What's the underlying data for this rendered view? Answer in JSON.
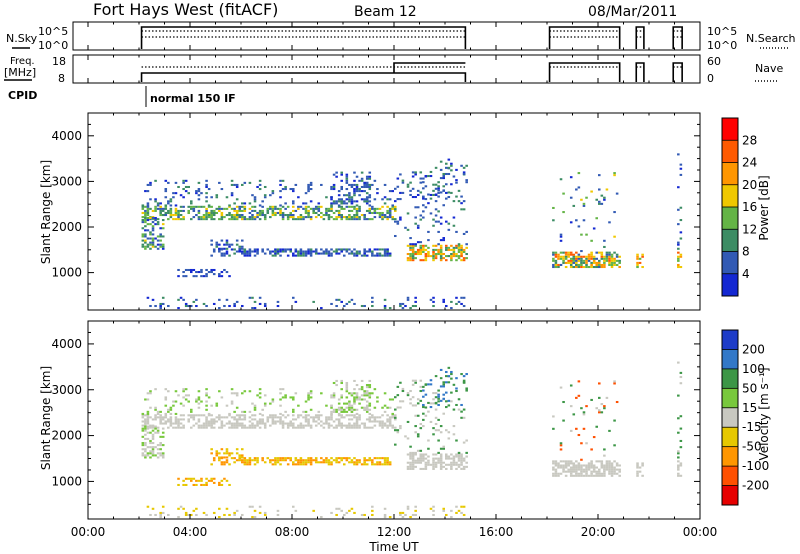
{
  "header": {
    "title": "Fort Hays West (fitACF)",
    "beam": "Beam 12",
    "date": "08/Mar/2011"
  },
  "summary": {
    "nsky_label": "N.Sky",
    "nsearch_label": "N.Search",
    "freq_label_line1": "Freq.",
    "freq_label_line2": "[MHz]",
    "nave_label": "Nave",
    "cpid_label": "CPID",
    "cpid_value": "normal 150 IF",
    "nsky_ticks": [
      "10^5",
      "10^0"
    ],
    "nsearch_ticks": [
      "10^5",
      "10^0"
    ],
    "freq_ticks": [
      "18",
      "8"
    ],
    "nave_ticks": [
      "60",
      "0"
    ]
  },
  "chart_data": [
    {
      "type": "heatmap",
      "name": "power",
      "ylabel": "Slant Range [km]",
      "yticks": [
        1000,
        2000,
        3000,
        4000
      ],
      "ylim": [
        180,
        4500
      ],
      "colorbar_label": "Power [dB]",
      "colorbar_ticks": [
        4,
        8,
        12,
        16,
        20,
        24,
        28
      ],
      "colorbar_range": [
        0,
        32
      ],
      "colors": [
        "#1428d2",
        "#325ab4",
        "#3c8c64",
        "#64b446",
        "#f0c800",
        "#ff9600",
        "#ff5a00",
        "#ff0000"
      ]
    },
    {
      "type": "heatmap",
      "name": "velocity",
      "ylabel": "Slant Range [km]",
      "yticks": [
        1000,
        2000,
        3000,
        4000
      ],
      "ylim": [
        180,
        4500
      ],
      "colorbar_label": "Velocity [m s⁻¹]",
      "colorbar_ticks": [
        "200",
        "100",
        "50",
        "15",
        "-15",
        "-50",
        "-100",
        "-200"
      ],
      "colors": [
        "#1e3cc8",
        "#3278c8",
        "#3c9646",
        "#78c83c",
        "#c8c8c0",
        "#e6c800",
        "#ff9600",
        "#ff5000",
        "#e60000"
      ]
    }
  ],
  "time_axis": {
    "xlabel": "Time UT",
    "tick_labels": [
      "00:00",
      "04:00",
      "08:00",
      "12:00",
      "16:00",
      "20:00",
      "00:00"
    ],
    "xlim_hours": [
      0,
      24
    ]
  },
  "echo_regions": [
    {
      "t0": 2.1,
      "t1": 12.0,
      "r0": 2150,
      "r1": 2450,
      "d": 0.55,
      "power": [
        8,
        12,
        16
      ],
      "vel": [
        0
      ]
    },
    {
      "t0": 2.1,
      "t1": 12.0,
      "r0": 2450,
      "r1": 3000,
      "d": 0.12,
      "power": [
        4,
        8
      ],
      "vel": [
        0,
        1
      ]
    },
    {
      "t0": 2.1,
      "t1": 3.0,
      "r0": 1500,
      "r1": 2200,
      "d": 0.5,
      "power": [
        4,
        8,
        12,
        16
      ],
      "vel": [
        0,
        1
      ]
    },
    {
      "t0": 4.8,
      "t1": 11.8,
      "r0": 1350,
      "r1": 1500,
      "d": 0.55,
      "power": [
        4,
        8
      ],
      "vel": [
        -2,
        -1
      ]
    },
    {
      "t0": 4.8,
      "t1": 6.0,
      "r0": 1500,
      "r1": 1700,
      "d": 0.4,
      "power": [
        4,
        8
      ],
      "vel": [
        -2,
        -1
      ]
    },
    {
      "t0": 3.5,
      "t1": 5.5,
      "r0": 900,
      "r1": 1050,
      "d": 0.3,
      "power": [
        4
      ],
      "vel": [
        -1,
        -2
      ]
    },
    {
      "t0": 9.5,
      "t1": 11.0,
      "r0": 2450,
      "r1": 3200,
      "d": 0.3,
      "power": [
        4,
        8
      ],
      "vel": [
        0,
        1
      ]
    },
    {
      "t0": 12.5,
      "t1": 14.8,
      "r0": 1250,
      "r1": 1600,
      "d": 0.6,
      "power": [
        12,
        16,
        20,
        24
      ],
      "vel": [
        0
      ]
    },
    {
      "t0": 12.0,
      "t1": 14.8,
      "r0": 1600,
      "r1": 3300,
      "d": 0.12,
      "power": [
        4,
        8
      ],
      "vel": [
        0,
        2
      ]
    },
    {
      "t0": 13.0,
      "t1": 14.8,
      "r0": 2600,
      "r1": 3500,
      "d": 0.15,
      "power": [
        4,
        8
      ],
      "vel": [
        2,
        3
      ]
    },
    {
      "t0": 2.1,
      "t1": 14.8,
      "r0": 200,
      "r1": 450,
      "d": 0.1,
      "power": [
        4,
        8
      ],
      "vel": [
        -1,
        0
      ]
    },
    {
      "t0": 18.2,
      "t1": 20.9,
      "r0": 1100,
      "r1": 1450,
      "d": 0.65,
      "power": [
        8,
        12,
        16,
        20,
        24
      ],
      "vel": [
        0
      ]
    },
    {
      "t0": 18.2,
      "t1": 20.9,
      "r0": 1450,
      "r1": 3200,
      "d": 0.04,
      "power": [
        4,
        8,
        16
      ],
      "vel": [
        0,
        2,
        -3
      ]
    },
    {
      "t0": 21.5,
      "t1": 21.8,
      "r0": 1100,
      "r1": 1400,
      "d": 0.5,
      "power": [
        16,
        20,
        24
      ],
      "vel": [
        0
      ]
    },
    {
      "t0": 23.1,
      "t1": 23.3,
      "r0": 1100,
      "r1": 1500,
      "d": 0.5,
      "power": [
        16,
        20,
        24
      ],
      "vel": [
        0
      ]
    },
    {
      "t0": 23.1,
      "t1": 23.3,
      "r0": 1500,
      "r1": 3700,
      "d": 0.1,
      "power": [
        4,
        8
      ],
      "vel": [
        0,
        2
      ]
    }
  ],
  "op_segments": [
    {
      "t0": 2.1,
      "t1": 14.8
    },
    {
      "t0": 18.1,
      "t1": 20.85
    },
    {
      "t0": 21.5,
      "t1": 21.8
    },
    {
      "t0": 22.95,
      "t1": 23.3
    }
  ]
}
